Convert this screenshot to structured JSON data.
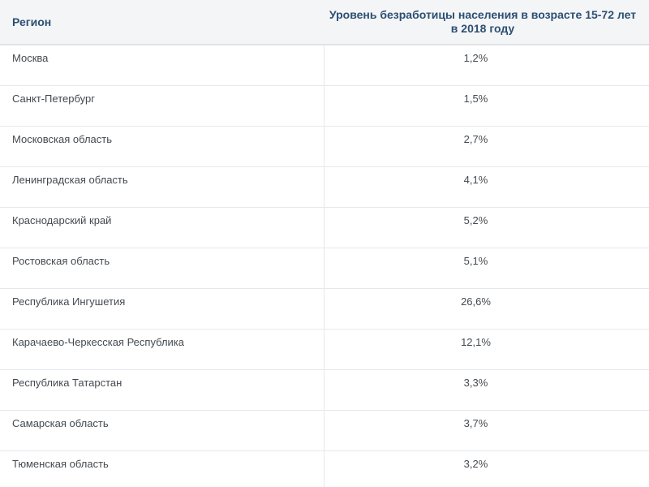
{
  "table": {
    "columns": [
      "Регион",
      "Уровень безработицы населения в возрасте 15-72 лет в 2018 году"
    ],
    "rows": [
      {
        "region": "Москва",
        "value": "1,2%"
      },
      {
        "region": "Санкт-Петербург",
        "value": "1,5%"
      },
      {
        "region": "Московская область",
        "value": "2,7%"
      },
      {
        "region": "Ленинградская область",
        "value": "4,1%"
      },
      {
        "region": "Краснодарский край",
        "value": "5,2%"
      },
      {
        "region": "Ростовская область",
        "value": "5,1%"
      },
      {
        "region": "Республика Ингушетия",
        "value": "26,6%"
      },
      {
        "region": "Карачаево-Черкесская Республика",
        "value": "12,1%"
      },
      {
        "region": "Республика Татарстан",
        "value": "3,3%"
      },
      {
        "region": "Самарская область",
        "value": "3,7%"
      },
      {
        "region": "Тюменская область",
        "value": "3,2%"
      }
    ]
  },
  "colors": {
    "header_bg": "#f4f5f7",
    "header_text": "#2c4f72",
    "cell_text": "#444a50",
    "border": "#e6e8eb"
  }
}
